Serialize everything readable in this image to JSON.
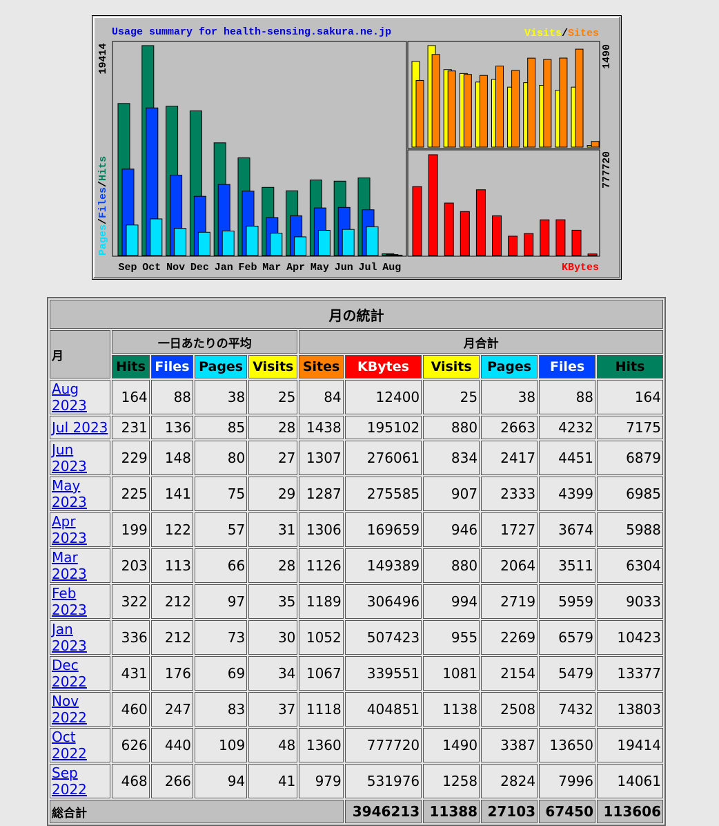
{
  "chart_data": [
    {
      "type": "bar",
      "title": "Usage summary for health-sensing.sakura.ne.jp",
      "categories": [
        "Sep",
        "Oct",
        "Nov",
        "Dec",
        "Jan",
        "Feb",
        "Mar",
        "Apr",
        "May",
        "Jun",
        "Jul",
        "Aug"
      ],
      "series": [
        {
          "name": "Hits",
          "color": "#00805c",
          "values": [
            14061,
            19414,
            13803,
            13377,
            10423,
            9033,
            6304,
            5988,
            6985,
            6879,
            7175,
            164
          ]
        },
        {
          "name": "Files",
          "color": "#0040ff",
          "values": [
            7996,
            13650,
            7432,
            5479,
            6579,
            5959,
            3511,
            3674,
            4399,
            4451,
            4232,
            88
          ]
        },
        {
          "name": "Pages",
          "color": "#00e0ff",
          "values": [
            2824,
            3387,
            2508,
            2154,
            2269,
            2719,
            2064,
            1727,
            2333,
            2417,
            2663,
            38
          ]
        }
      ],
      "legend_separator": "/",
      "ylim": [
        0,
        19414
      ],
      "yticks": [
        19414
      ]
    },
    {
      "type": "bar",
      "series": [
        {
          "name": "Visits",
          "color": "#ffff00",
          "values": [
            1258,
            1490,
            1138,
            1081,
            955,
            994,
            880,
            946,
            907,
            834,
            880,
            25
          ]
        },
        {
          "name": "Sites",
          "color": "#ff8000",
          "values": [
            979,
            1360,
            1118,
            1067,
            1052,
            1189,
            1126,
            1306,
            1287,
            1307,
            1438,
            84
          ]
        }
      ],
      "legend_separator": "/",
      "ylim": [
        0,
        1490
      ],
      "yticks": [
        1490
      ]
    },
    {
      "type": "bar",
      "series": [
        {
          "name": "KBytes",
          "color": "#ff0000",
          "values": [
            531976,
            777720,
            404851,
            339551,
            507423,
            306496,
            149389,
            169659,
            275585,
            276061,
            195102,
            12400
          ]
        }
      ],
      "ylim": [
        0,
        777720
      ],
      "yticks": [
        777720
      ]
    }
  ],
  "table": {
    "title": "月の統計",
    "month_header": "月",
    "daily_header": "一日あたりの平均",
    "total_header": "月合計",
    "columns": [
      {
        "label": "Hits",
        "color": "#00805c",
        "text": "#000000"
      },
      {
        "label": "Files",
        "color": "#0040ff",
        "text": "#ffffff"
      },
      {
        "label": "Pages",
        "color": "#00e0ff",
        "text": "#000000"
      },
      {
        "label": "Visits",
        "color": "#ffff00",
        "text": "#000000"
      },
      {
        "label": "Sites",
        "color": "#ff8000",
        "text": "#000000"
      },
      {
        "label": "KBytes",
        "color": "#ff0000",
        "text": "#ffffff"
      },
      {
        "label": "Visits",
        "color": "#ffff00",
        "text": "#000000"
      },
      {
        "label": "Pages",
        "color": "#00e0ff",
        "text": "#000000"
      },
      {
        "label": "Files",
        "color": "#0040ff",
        "text": "#ffffff"
      },
      {
        "label": "Hits",
        "color": "#00805c",
        "text": "#000000"
      }
    ],
    "rows": [
      [
        "Aug 2023",
        164,
        88,
        38,
        25,
        84,
        12400,
        25,
        38,
        88,
        164
      ],
      [
        "Jul 2023",
        231,
        136,
        85,
        28,
        1438,
        195102,
        880,
        2663,
        4232,
        7175
      ],
      [
        "Jun 2023",
        229,
        148,
        80,
        27,
        1307,
        276061,
        834,
        2417,
        4451,
        6879
      ],
      [
        "May 2023",
        225,
        141,
        75,
        29,
        1287,
        275585,
        907,
        2333,
        4399,
        6985
      ],
      [
        "Apr 2023",
        199,
        122,
        57,
        31,
        1306,
        169659,
        946,
        1727,
        3674,
        5988
      ],
      [
        "Mar 2023",
        203,
        113,
        66,
        28,
        1126,
        149389,
        880,
        2064,
        3511,
        6304
      ],
      [
        "Feb 2023",
        322,
        212,
        97,
        35,
        1189,
        306496,
        994,
        2719,
        5959,
        9033
      ],
      [
        "Jan 2023",
        336,
        212,
        73,
        30,
        1052,
        507423,
        955,
        2269,
        6579,
        10423
      ],
      [
        "Dec 2022",
        431,
        176,
        69,
        34,
        1067,
        339551,
        1081,
        2154,
        5479,
        13377
      ],
      [
        "Nov 2022",
        460,
        247,
        83,
        37,
        1118,
        404851,
        1138,
        2508,
        7432,
        13803
      ],
      [
        "Oct 2022",
        626,
        440,
        109,
        48,
        1360,
        777720,
        1490,
        3387,
        13650,
        19414
      ],
      [
        "Sep 2022",
        468,
        266,
        94,
        41,
        979,
        531976,
        1258,
        2824,
        7996,
        14061
      ]
    ],
    "footer": {
      "label": "総合計",
      "values": [
        3946213,
        11388,
        27103,
        67450,
        113606
      ]
    }
  }
}
